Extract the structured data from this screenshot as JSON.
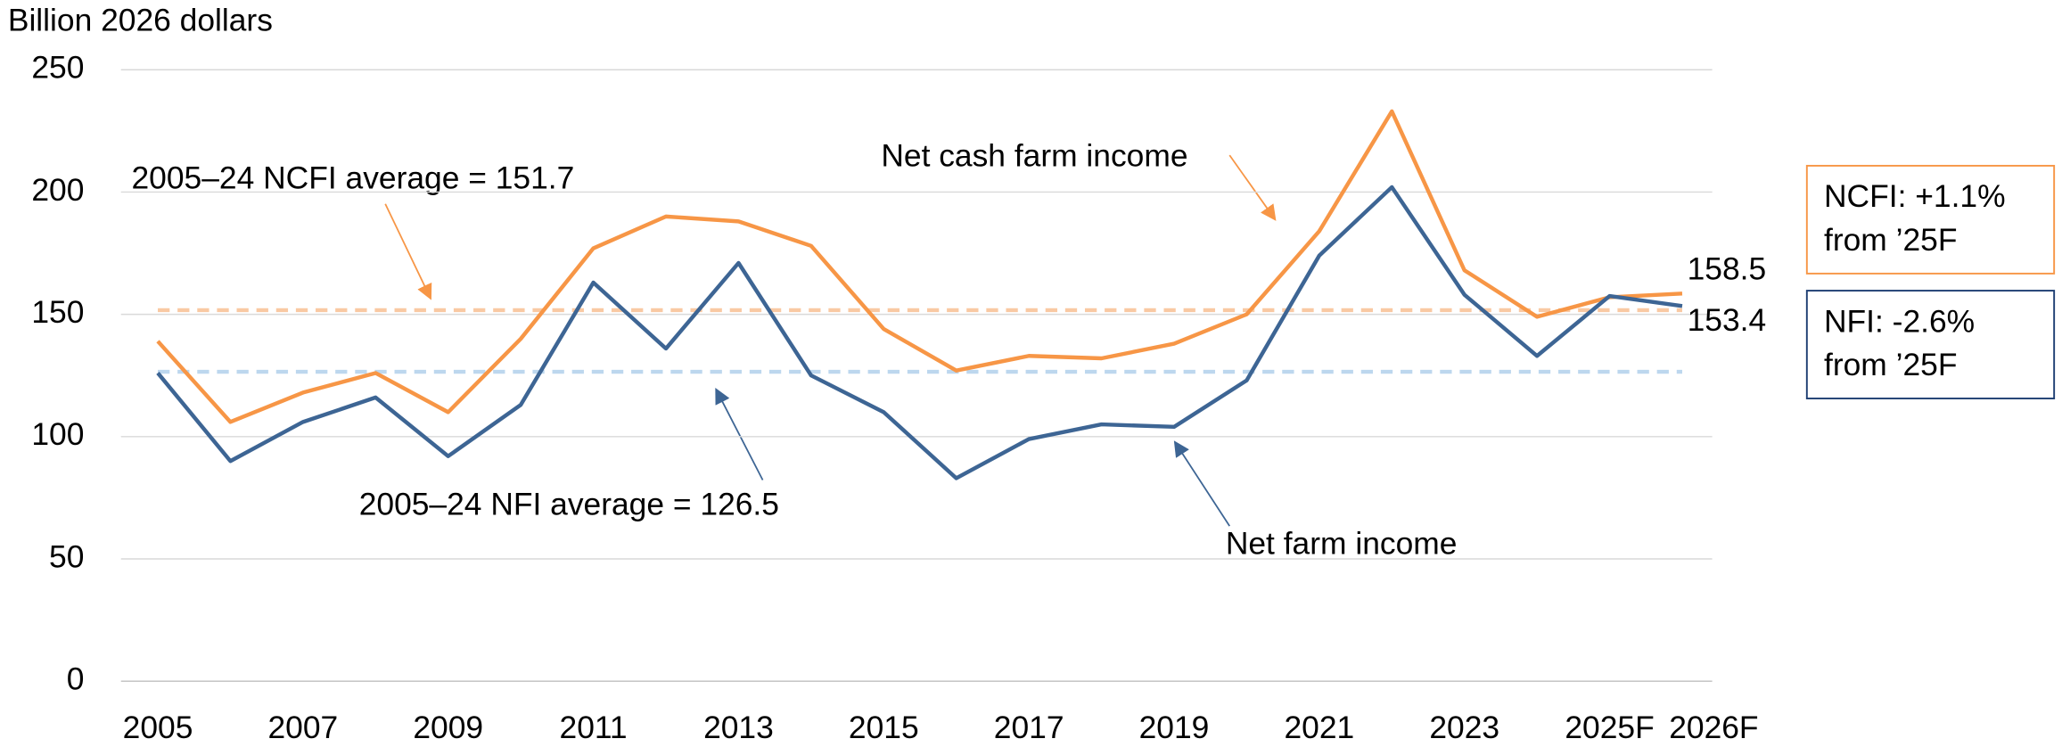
{
  "chart_data": {
    "type": "line",
    "y_axis_label": "Billion 2026 dollars",
    "categories": [
      "2005",
      null,
      "2007",
      null,
      "2009",
      null,
      "2011",
      null,
      "2013",
      null,
      "2015",
      null,
      "2017",
      null,
      "2019",
      null,
      "2021",
      null,
      "2023",
      null,
      "2025F",
      "2026F"
    ],
    "series": [
      {
        "name": "Net cash farm income",
        "color": "#f79646",
        "values": [
          139,
          106,
          118,
          126,
          110,
          140,
          177,
          190,
          188,
          178,
          144,
          127,
          133,
          132,
          138,
          150,
          184,
          233,
          168,
          149,
          157,
          158.5
        ]
      },
      {
        "name": "Net farm income",
        "color": "#3d6594",
        "values": [
          126,
          90,
          106,
          116,
          92,
          113,
          163,
          136,
          171,
          125,
          110,
          83,
          99,
          105,
          104,
          123,
          174,
          202,
          158,
          133,
          157.5,
          153.4
        ]
      }
    ],
    "averages": [
      {
        "label": "2005–24 NCFI average = 151.7",
        "value": 151.7,
        "color": "#f9c9a3"
      },
      {
        "label": "2005–24 NFI average = 126.5",
        "value": 126.5,
        "color": "#bdd7ee"
      }
    ],
    "boxes": [
      {
        "lines": [
          "NCFI: +1.1%",
          "from ’25F"
        ],
        "color": "#f79646"
      },
      {
        "lines": [
          "NFI: -2.6%",
          "from ’25F"
        ],
        "color": "#1f3f73"
      }
    ],
    "ylim": [
      0,
      250
    ],
    "yticks": [
      0,
      50,
      100,
      150,
      200,
      250
    ],
    "grid": true
  }
}
